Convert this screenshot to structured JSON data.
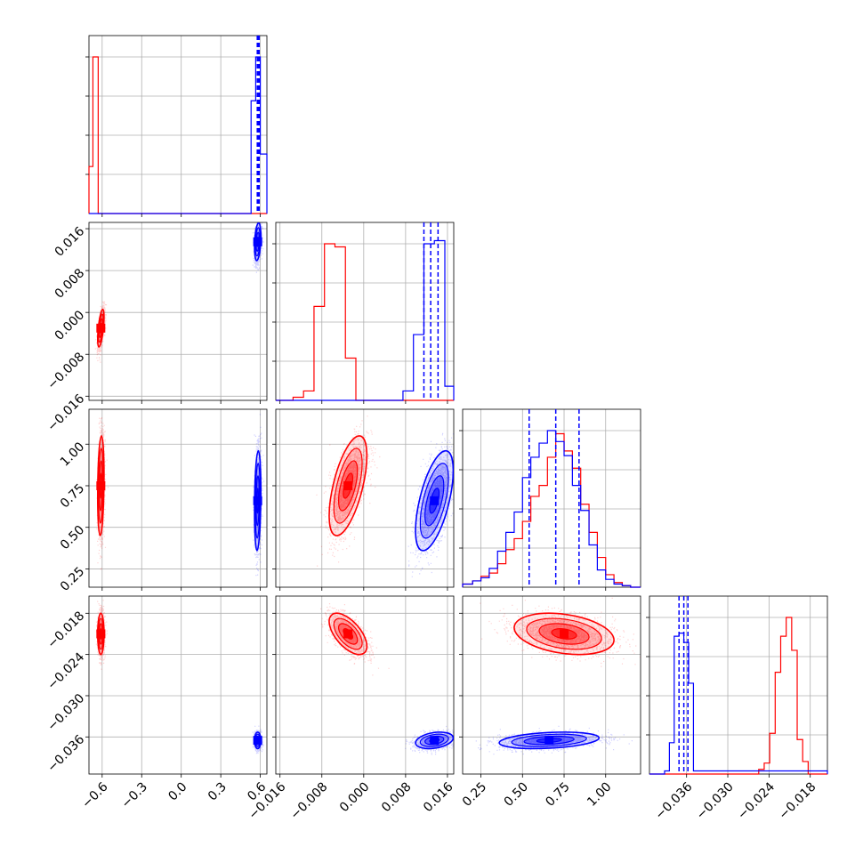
{
  "chart_data": {
    "type": "corner",
    "parameters": 4,
    "grid": true,
    "colors": {
      "series_a": "#ff0000",
      "series_b": "#0000ff"
    },
    "axes": [
      {
        "range": [
          -0.7,
          0.65
        ],
        "ticks": [
          -0.6,
          -0.3,
          0.0,
          0.3,
          0.6
        ],
        "tick_labels": [
          "−0.6",
          "−0.3",
          "0.0",
          "0.3",
          "0.6"
        ]
      },
      {
        "range": [
          -0.0168,
          0.0172
        ],
        "ticks": [
          -0.016,
          -0.008,
          0.0,
          0.008,
          0.016
        ],
        "tick_labels": [
          "−0.016",
          "−0.008",
          "0.000",
          "0.008",
          "0.016"
        ]
      },
      {
        "range": [
          0.14,
          1.21
        ],
        "ticks": [
          0.25,
          0.5,
          0.75,
          1.0
        ],
        "tick_labels": [
          "0.25",
          "0.50",
          "0.75",
          "1.00"
        ]
      },
      {
        "range": [
          -0.0414,
          -0.0155
        ],
        "ticks": [
          -0.036,
          -0.03,
          -0.024,
          -0.018
        ],
        "tick_labels": [
          "−0.036",
          "−0.030",
          "−0.024",
          "−0.018"
        ]
      }
    ],
    "series": [
      {
        "name": "",
        "color": "#ff0000",
        "means": [
          -0.61,
          -0.003,
          0.75,
          -0.021
        ],
        "stds": [
          0.012,
          0.0018,
          0.15,
          0.0015
        ],
        "correlations": [
          [
            0,
            1,
            0.6
          ],
          [
            0,
            2,
            0.2
          ],
          [
            0,
            3,
            0.0
          ],
          [
            1,
            2,
            0.6
          ],
          [
            1,
            3,
            -0.6
          ],
          [
            2,
            3,
            -0.3
          ]
        ],
        "histograms": [
          {
            "edges": [
              -0.7,
              -0.67,
              -0.63,
              -0.58,
              0.65
            ],
            "counts": [
              0.3,
              1.0,
              0.0,
              0.0
            ]
          },
          {
            "edges": [
              -0.0168,
              -0.0135,
              -0.0115,
              -0.0095,
              -0.0075,
              -0.0055,
              -0.0035,
              -0.0015,
              0.0005,
              0.0025,
              0.0172
            ],
            "counts": [
              0.0,
              0.02,
              0.06,
              0.6,
              1.0,
              0.98,
              0.27,
              0.0,
              0.0,
              0.0
            ]
          },
          {
            "edges": [
              0.14,
              0.2,
              0.25,
              0.3,
              0.35,
              0.4,
              0.45,
              0.5,
              0.55,
              0.6,
              0.65,
              0.7,
              0.75,
              0.8,
              0.85,
              0.9,
              0.95,
              1.0,
              1.05,
              1.1,
              1.15,
              1.21
            ],
            "counts": [
              0.02,
              0.04,
              0.07,
              0.09,
              0.15,
              0.24,
              0.31,
              0.42,
              0.58,
              0.65,
              0.83,
              0.98,
              0.87,
              0.76,
              0.53,
              0.35,
              0.19,
              0.08,
              0.03,
              0.01,
              0.0
            ]
          },
          {
            "edges": [
              -0.0414,
              -0.0255,
              -0.0247,
              -0.0239,
              -0.0231,
              -0.0223,
              -0.0215,
              -0.0207,
              -0.0199,
              -0.0191,
              -0.0183,
              -0.0155
            ],
            "counts": [
              0.0,
              0.03,
              0.07,
              0.26,
              0.65,
              0.88,
              1.0,
              0.79,
              0.22,
              0.08,
              0.0
            ]
          }
        ],
        "quantiles": [
          [],
          [],
          [],
          []
        ]
      },
      {
        "name": "",
        "color": "#0000ff",
        "means": [
          0.58,
          0.0135,
          0.66,
          -0.0365
        ],
        "stds": [
          0.012,
          0.0018,
          0.15,
          0.0006
        ],
        "correlations": [
          [
            0,
            1,
            0.3
          ],
          [
            0,
            2,
            0.2
          ],
          [
            0,
            3,
            0.0
          ],
          [
            1,
            2,
            0.6
          ],
          [
            1,
            3,
            0.3
          ],
          [
            2,
            3,
            0.3
          ]
        ],
        "histograms": [
          {
            "edges": [
              -0.7,
              0.53,
              0.565,
              0.6,
              0.65
            ],
            "counts": [
              0.0,
              0.72,
              1.0,
              0.38
            ]
          },
          {
            "edges": [
              -0.0168,
              0.0075,
              0.0095,
              0.0115,
              0.0135,
              0.0155,
              0.0172
            ],
            "counts": [
              0.0,
              0.06,
              0.42,
              1.0,
              1.02,
              0.09
            ]
          },
          {
            "edges": [
              0.14,
              0.2,
              0.25,
              0.3,
              0.35,
              0.4,
              0.45,
              0.5,
              0.55,
              0.6,
              0.65,
              0.7,
              0.75,
              0.8,
              0.85,
              0.9,
              0.95,
              1.0,
              1.05,
              1.1,
              1.15,
              1.21
            ],
            "counts": [
              0.02,
              0.04,
              0.06,
              0.12,
              0.23,
              0.35,
              0.48,
              0.7,
              0.83,
              0.92,
              1.0,
              0.93,
              0.84,
              0.65,
              0.49,
              0.27,
              0.11,
              0.05,
              0.02,
              0.01,
              0.0
            ]
          },
          {
            "edges": [
              -0.0414,
              -0.0392,
              -0.0385,
              -0.0378,
              -0.0371,
              -0.0364,
              -0.0357,
              -0.035,
              -0.0155
            ],
            "counts": [
              0.0,
              0.02,
              0.2,
              0.88,
              0.9,
              0.84,
              0.58,
              0.02
            ]
          }
        ],
        "quantiles": [
          [
            0.577,
            0.584,
            0.591
          ],
          [
            0.0115,
            0.0128,
            0.0142
          ],
          [
            0.54,
            0.7,
            0.84
          ],
          [
            -0.0371,
            -0.0364,
            -0.0358
          ]
        ]
      }
    ]
  }
}
